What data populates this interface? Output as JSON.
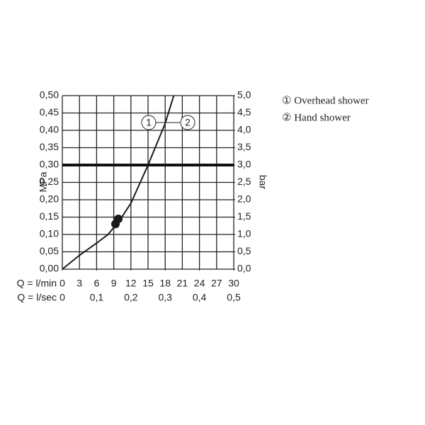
{
  "chart_data": {
    "type": "line",
    "x": [
      0,
      3,
      6,
      8,
      9,
      10,
      12,
      15,
      18,
      19.5
    ],
    "y": [
      0,
      0.04,
      0.075,
      0.1,
      0.12,
      0.14,
      0.19,
      0.3,
      0.42,
      0.5
    ],
    "color": "#1a1a1a",
    "points": {
      "x": [
        9.3,
        9.8
      ],
      "y": [
        0.13,
        0.145
      ]
    },
    "hline": 0.3,
    "vline": 15,
    "xlim": [
      0,
      30
    ],
    "xticks": [
      0,
      3,
      6,
      9,
      12,
      15,
      18,
      21,
      24,
      27,
      30
    ],
    "x_label": "Q = l/min",
    "x2lim": [
      0,
      0.5
    ],
    "x2ticks": [
      0,
      {
        "value": 0.1,
        "label": "0,1"
      },
      {
        "value": 0.2,
        "label": "0,2"
      },
      {
        "value": 0.3,
        "label": "0,3"
      },
      {
        "value": 0.4,
        "label": "0,4"
      },
      {
        "value": 0.5,
        "label": "0,5"
      }
    ],
    "x2_label": "Q = l/sec",
    "ylim": [
      0,
      0.5
    ],
    "yticks": [
      {
        "value": 0,
        "label": "0,00"
      },
      {
        "value": 0.05,
        "label": "0,05"
      },
      {
        "value": 0.1,
        "label": "0,10"
      },
      {
        "value": 0.15,
        "label": "0,15"
      },
      {
        "value": 0.2,
        "label": "0,20"
      },
      {
        "value": 0.25,
        "label": "0,25"
      },
      {
        "value": 0.3,
        "label": "0,30"
      },
      {
        "value": 0.35,
        "label": "0,35"
      },
      {
        "value": 0.4,
        "label": "0,40"
      },
      {
        "value": 0.45,
        "label": "0,45"
      },
      {
        "value": 0.5,
        "label": "0,50"
      }
    ],
    "y_label": "MPa",
    "y2lim": [
      0,
      5
    ],
    "y2ticks": [
      {
        "value": 0,
        "label": "0,0"
      },
      {
        "value": 0.5,
        "label": "0,5"
      },
      {
        "value": 1,
        "label": "1,0"
      },
      {
        "value": 1.5,
        "label": "1,5"
      },
      {
        "value": 2,
        "label": "2,0"
      },
      {
        "value": 2.5,
        "label": "2,5"
      },
      {
        "value": 3,
        "label": "3,0"
      },
      {
        "value": 3.5,
        "label": "3,5"
      },
      {
        "value": 4,
        "label": "4,0"
      },
      {
        "value": 4.5,
        "label": "4,5"
      },
      {
        "value": 5,
        "label": "5,0"
      }
    ],
    "y2_label": "bar",
    "grid": true,
    "annotations": [
      "1",
      "2"
    ],
    "legend": [
      "① Overhead shower",
      "② Hand shower"
    ]
  }
}
